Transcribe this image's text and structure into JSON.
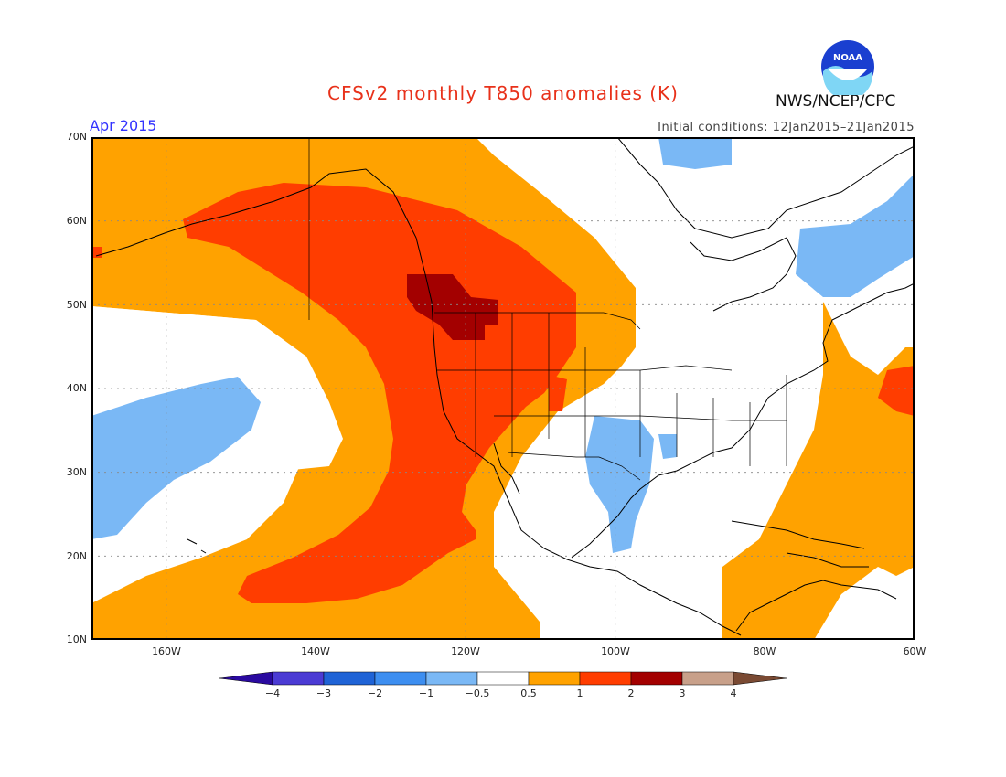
{
  "title": "CFSv2 monthly T850 anomalies (K)",
  "period": "Apr 2015",
  "initial_conditions": "Initial conditions: 12Jan2015–21Jan2015",
  "agency": "NWS/NCEP/CPC",
  "logo_text": "NOAA",
  "lat_labels": [
    "70N",
    "60N",
    "50N",
    "40N",
    "30N",
    "20N",
    "10N"
  ],
  "lon_labels": [
    "160W",
    "140W",
    "120W",
    "100W",
    "80W",
    "60W"
  ],
  "legend": {
    "bins": [
      {
        "range": "< -4",
        "color": "#2a0aa0"
      },
      {
        "range": "-4 to -3",
        "color": "#4b3bd4"
      },
      {
        "range": "-3 to -2",
        "color": "#1f63d6"
      },
      {
        "range": "-2 to -1",
        "color": "#3d8ef0"
      },
      {
        "range": "-1 to -0.5",
        "color": "#7ab8f5"
      },
      {
        "range": "-0.5 to 0.5",
        "color": "#ffffff"
      },
      {
        "range": "0.5 to 1",
        "color": "#ffa200"
      },
      {
        "range": "1 to 2",
        "color": "#ff3d00"
      },
      {
        "range": "2 to 3",
        "color": "#a30000"
      },
      {
        "range": "3 to 4",
        "color": "#c8a08a"
      },
      {
        "range": "> 4",
        "color": "#7a4a33"
      }
    ],
    "labels": [
      "−4",
      "−3",
      "−2",
      "−1",
      "−0.5",
      "0.5",
      "1",
      "2",
      "3",
      "4"
    ]
  },
  "colors": {
    "light_blue": "#7ab8f5",
    "orange": "#ffa200",
    "red": "#ff3d00",
    "dark_red": "#a30000",
    "title_red": "#e8311a",
    "period_blue": "#3333ff"
  }
}
